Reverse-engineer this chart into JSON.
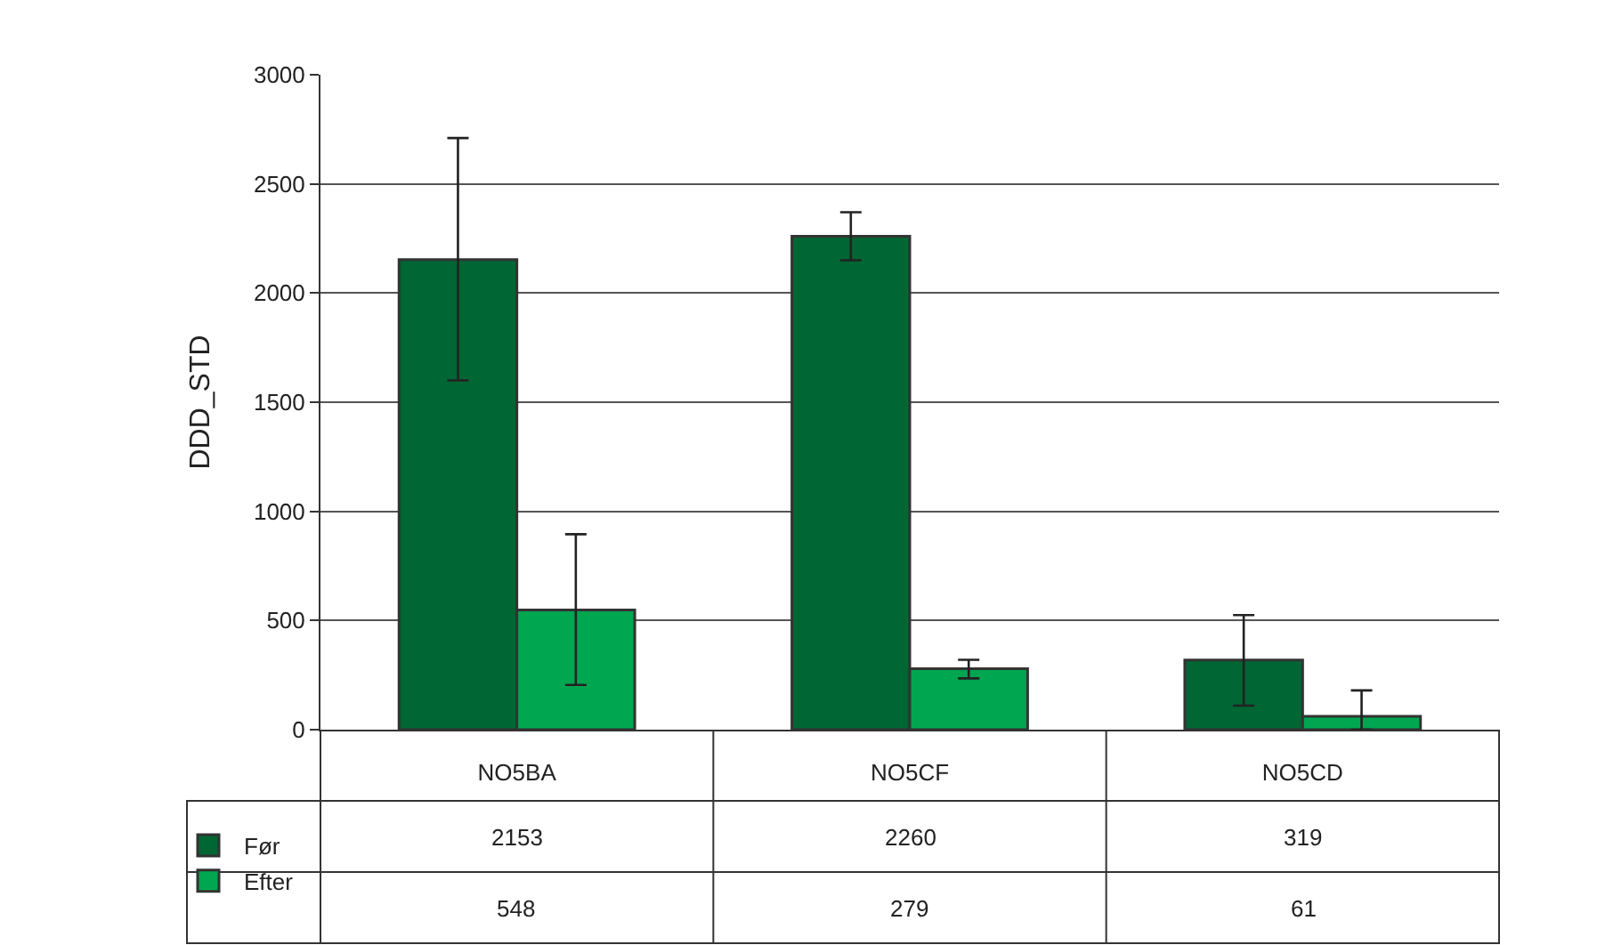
{
  "chart_data": {
    "type": "bar",
    "ylabel": "DDD_STD",
    "categories": [
      "NO5BA",
      "NO5CF",
      "NO5CD"
    ],
    "series": [
      {
        "name": "Før",
        "color": "#006633",
        "values": [
          2153,
          2260,
          319
        ],
        "errors": [
          [
            1600,
            2710
          ],
          [
            2150,
            2370
          ],
          [
            110,
            525
          ]
        ]
      },
      {
        "name": "Efter",
        "color": "#00a650",
        "values": [
          548,
          279,
          61
        ],
        "errors": [
          [
            205,
            895
          ],
          [
            235,
            320
          ],
          [
            0,
            180
          ]
        ]
      }
    ],
    "ylim": [
      0,
      3000
    ],
    "yticks": [
      0,
      500,
      1000,
      1500,
      2000,
      2500,
      3000
    ],
    "grid": "y",
    "legend": "bottom",
    "data_labels": true
  }
}
